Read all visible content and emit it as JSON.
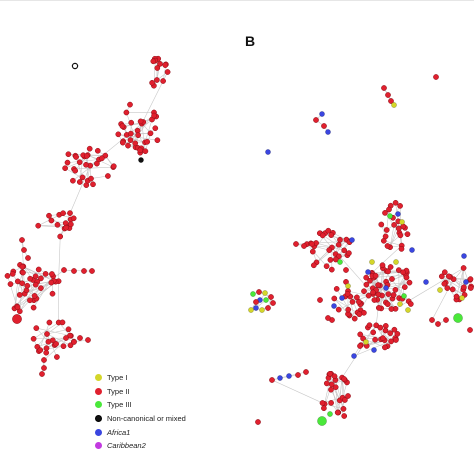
{
  "panel_label": "B",
  "colors": {
    "type_i": "#d4d62a",
    "type_ii": "#e0202e",
    "type_iii": "#4ae83a",
    "non_canonical": "#111111",
    "africa1": "#3a46e0",
    "caribbean2": "#c23ae0",
    "edge": "#c8c8c8",
    "node_stroke": "#8b0d16"
  },
  "legend": [
    {
      "label": "Type I",
      "color_key": "type_i",
      "italic": false
    },
    {
      "label": "Type II",
      "color_key": "type_ii",
      "italic": false
    },
    {
      "label": "Type III",
      "color_key": "type_iii",
      "italic": false
    },
    {
      "label": "Non-canonical or mixed",
      "color_key": "non_canonical",
      "italic": false
    },
    {
      "label": "Africa1",
      "color_key": "africa1",
      "italic": true
    },
    {
      "label": "Caribbean2",
      "color_key": "caribbean2",
      "italic": true
    }
  ]
}
